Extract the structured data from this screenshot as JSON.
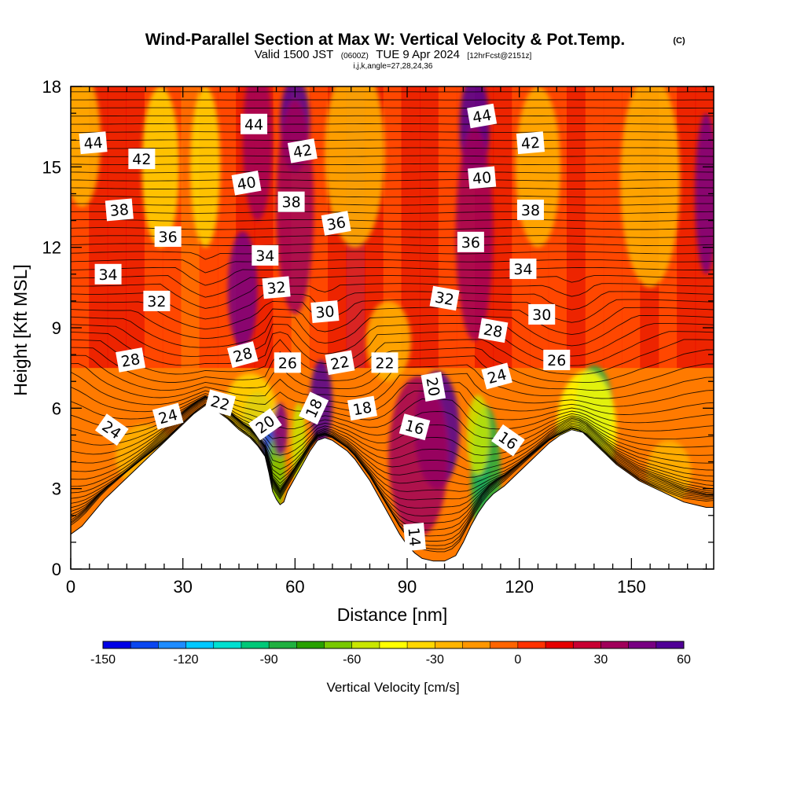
{
  "chart_data": {
    "type": "heatmap",
    "title": "Wind-Parallel Section at Max W: Vertical Velocity & Pot.Temp.",
    "title_mark": "(C)",
    "subtitle_parts": [
      "Valid 1500 JST",
      "(0600Z)",
      "TUE 9 Apr 2024",
      "[12hrFcst@2151z]"
    ],
    "subtitle2": "i,j,k,angle=27,28,24,36",
    "xlabel": "Distance [nm]",
    "ylabel": "Height [Kft MSL]",
    "xlim": [
      0,
      172
    ],
    "ylim": [
      0,
      18
    ],
    "x_ticks": [
      0,
      30,
      60,
      90,
      120,
      150
    ],
    "y_ticks": [
      0,
      3,
      6,
      9,
      12,
      15,
      18
    ],
    "colorbar": {
      "label": "Vertical Velocity [cm/s]",
      "range": [
        -150,
        60
      ],
      "tick_values": [
        -150,
        -120,
        -90,
        -60,
        -30,
        0,
        30,
        60
      ],
      "colors": [
        "#0000e6",
        "#0a46f0",
        "#1e8cff",
        "#00c8ff",
        "#00e0d0",
        "#00c878",
        "#20b040",
        "#28a000",
        "#78c800",
        "#c8e600",
        "#ffff00",
        "#ffd700",
        "#ffb400",
        "#ff9600",
        "#ff6400",
        "#ff3200",
        "#e60000",
        "#c80032",
        "#a0005a",
        "#780082",
        "#500096"
      ]
    },
    "terrain_kft": [
      [
        0,
        1.3
      ],
      [
        3,
        1.6
      ],
      [
        6,
        2.1
      ],
      [
        9,
        2.6
      ],
      [
        12,
        3.0
      ],
      [
        15,
        3.4
      ],
      [
        18,
        3.8
      ],
      [
        21,
        4.2
      ],
      [
        24,
        4.6
      ],
      [
        27,
        5.0
      ],
      [
        30,
        5.4
      ],
      [
        33,
        5.8
      ],
      [
        36,
        6.1
      ],
      [
        39,
        5.9
      ],
      [
        42,
        5.6
      ],
      [
        45,
        5.2
      ],
      [
        48,
        4.9
      ],
      [
        50,
        4.6
      ],
      [
        52,
        4.2
      ],
      [
        53,
        3.6
      ],
      [
        54,
        2.9
      ],
      [
        55,
        2.6
      ],
      [
        56,
        2.4
      ],
      [
        57,
        2.5
      ],
      [
        58,
        2.9
      ],
      [
        60,
        3.4
      ],
      [
        62,
        3.9
      ],
      [
        64,
        4.4
      ],
      [
        66,
        4.8
      ],
      [
        68,
        4.9
      ],
      [
        70,
        4.8
      ],
      [
        72,
        4.6
      ],
      [
        74,
        4.4
      ],
      [
        76,
        4.1
      ],
      [
        78,
        3.7
      ],
      [
        80,
        3.3
      ],
      [
        82,
        2.8
      ],
      [
        84,
        2.3
      ],
      [
        86,
        1.8
      ],
      [
        88,
        1.3
      ],
      [
        90,
        0.9
      ],
      [
        92,
        0.6
      ],
      [
        94,
        0.4
      ],
      [
        97,
        0.3
      ],
      [
        100,
        0.3
      ],
      [
        103,
        0.5
      ],
      [
        105,
        1.0
      ],
      [
        107,
        1.6
      ],
      [
        109,
        2.1
      ],
      [
        111,
        2.5
      ],
      [
        113,
        2.8
      ],
      [
        116,
        3.1
      ],
      [
        119,
        3.5
      ],
      [
        122,
        3.9
      ],
      [
        125,
        4.3
      ],
      [
        128,
        4.7
      ],
      [
        131,
        5.0
      ],
      [
        134,
        5.2
      ],
      [
        137,
        5.1
      ],
      [
        140,
        4.7
      ],
      [
        143,
        4.3
      ],
      [
        146,
        3.9
      ],
      [
        149,
        3.6
      ],
      [
        152,
        3.3
      ],
      [
        155,
        3.1
      ],
      [
        158,
        2.9
      ],
      [
        161,
        2.7
      ],
      [
        164,
        2.5
      ],
      [
        167,
        2.4
      ],
      [
        170,
        2.3
      ],
      [
        172,
        2.3
      ]
    ],
    "w_features": [
      {
        "x": 140,
        "y": 6.0,
        "w": -90,
        "rx": 5,
        "ry": 1.6
      },
      {
        "x": 138,
        "y": 5.2,
        "w": -50,
        "rx": 8,
        "ry": 2.2
      },
      {
        "x": 110,
        "y": 4.0,
        "w": -130,
        "rx": 2,
        "ry": 1.6
      },
      {
        "x": 111,
        "y": 3.5,
        "w": -90,
        "rx": 4,
        "ry": 2.6
      },
      {
        "x": 109,
        "y": 5.0,
        "w": -60,
        "rx": 3,
        "ry": 1.5
      },
      {
        "x": 50,
        "y": 5.6,
        "w": -90,
        "rx": 4,
        "ry": 1.0
      },
      {
        "x": 48,
        "y": 5.9,
        "w": -40,
        "rx": 7,
        "ry": 1.4
      },
      {
        "x": 53,
        "y": 4.6,
        "w": -140,
        "rx": 2,
        "ry": 0.7
      },
      {
        "x": 55,
        "y": 3.6,
        "w": -70,
        "rx": 2.5,
        "ry": 1.4
      },
      {
        "x": 61,
        "y": 4.6,
        "w": -60,
        "rx": 2,
        "ry": 1.6
      },
      {
        "x": 98,
        "y": 5.2,
        "w": 55,
        "rx": 6,
        "ry": 2.2
      },
      {
        "x": 93,
        "y": 4.2,
        "w": 35,
        "rx": 8,
        "ry": 3.0
      },
      {
        "x": 67,
        "y": 6.2,
        "w": 50,
        "rx": 3,
        "ry": 1.6
      },
      {
        "x": 56,
        "y": 5.2,
        "w": 40,
        "rx": 2,
        "ry": 1.0
      },
      {
        "x": 46,
        "y": 10.4,
        "w": 40,
        "rx": 4,
        "ry": 2.2
      },
      {
        "x": 60,
        "y": 16.6,
        "w": 55,
        "rx": 4,
        "ry": 1.8
      },
      {
        "x": 60,
        "y": 13.5,
        "w": 35,
        "rx": 5,
        "ry": 4.0
      },
      {
        "x": 50,
        "y": 16,
        "w": 30,
        "rx": 4,
        "ry": 3.0
      },
      {
        "x": 108,
        "y": 16.5,
        "w": 55,
        "rx": 4,
        "ry": 2.0
      },
      {
        "x": 108,
        "y": 12.5,
        "w": 32,
        "rx": 5,
        "ry": 4.0
      },
      {
        "x": 170,
        "y": 14,
        "w": 40,
        "rx": 3,
        "ry": 3.0
      },
      {
        "x": 24,
        "y": 15,
        "w": -40,
        "rx": 5,
        "ry": 3.0
      },
      {
        "x": 36,
        "y": 15,
        "w": -35,
        "rx": 4,
        "ry": 3.0
      },
      {
        "x": 3,
        "y": 16,
        "w": -30,
        "rx": 5,
        "ry": 2.5
      },
      {
        "x": 76,
        "y": 15.5,
        "w": -30,
        "rx": 8,
        "ry": 3.5
      },
      {
        "x": 125,
        "y": 15,
        "w": -30,
        "rx": 6,
        "ry": 3.0
      },
      {
        "x": 155,
        "y": 14.5,
        "w": -25,
        "rx": 8,
        "ry": 4.0
      },
      {
        "x": 20,
        "y": 4.2,
        "w": -25,
        "rx": 8,
        "ry": 1.2
      },
      {
        "x": 85,
        "y": 8.5,
        "w": -22,
        "rx": 6,
        "ry": 1.5
      },
      {
        "x": 160,
        "y": 3.6,
        "w": -25,
        "rx": 6,
        "ry": 1.2
      }
    ],
    "contour_labels": [
      {
        "text": "44",
        "x": 6,
        "y": 15.9,
        "angle": -5
      },
      {
        "text": "42",
        "x": 19,
        "y": 15.3,
        "angle": 0
      },
      {
        "text": "44",
        "x": 49,
        "y": 16.6,
        "angle": 0
      },
      {
        "text": "42",
        "x": 62,
        "y": 15.6,
        "angle": -10
      },
      {
        "text": "40",
        "x": 47,
        "y": 14.4,
        "angle": -10
      },
      {
        "text": "38",
        "x": 13,
        "y": 13.4,
        "angle": -5
      },
      {
        "text": "36",
        "x": 26,
        "y": 12.4,
        "angle": 0
      },
      {
        "text": "38",
        "x": 59,
        "y": 13.7,
        "angle": 0
      },
      {
        "text": "36",
        "x": 71,
        "y": 12.9,
        "angle": -10
      },
      {
        "text": "34",
        "x": 10,
        "y": 11.0,
        "angle": 0
      },
      {
        "text": "32",
        "x": 23,
        "y": 10.0,
        "angle": 0
      },
      {
        "text": "34",
        "x": 52,
        "y": 11.7,
        "angle": 0
      },
      {
        "text": "32",
        "x": 55,
        "y": 10.5,
        "angle": -5
      },
      {
        "text": "30",
        "x": 68,
        "y": 9.6,
        "angle": -5
      },
      {
        "text": "28",
        "x": 16,
        "y": 7.8,
        "angle": -10
      },
      {
        "text": "28",
        "x": 46,
        "y": 8.0,
        "angle": -15
      },
      {
        "text": "26",
        "x": 58,
        "y": 7.7,
        "angle": 0
      },
      {
        "text": "22",
        "x": 72,
        "y": 7.7,
        "angle": -10
      },
      {
        "text": "22",
        "x": 84,
        "y": 7.7,
        "angle": 0
      },
      {
        "text": "24",
        "x": 11,
        "y": 5.2,
        "angle": 35
      },
      {
        "text": "24",
        "x": 26,
        "y": 5.7,
        "angle": -15
      },
      {
        "text": "22",
        "x": 40,
        "y": 6.2,
        "angle": 15
      },
      {
        "text": "20",
        "x": 52,
        "y": 5.4,
        "angle": -35
      },
      {
        "text": "18",
        "x": 65,
        "y": 6.0,
        "angle": -65
      },
      {
        "text": "18",
        "x": 78,
        "y": 6.0,
        "angle": -10
      },
      {
        "text": "20",
        "x": 97,
        "y": 6.8,
        "angle": 80
      },
      {
        "text": "16",
        "x": 92,
        "y": 5.3,
        "angle": 15
      },
      {
        "text": "14",
        "x": 92,
        "y": 1.2,
        "angle": 85
      },
      {
        "text": "36",
        "x": 107,
        "y": 12.2,
        "angle": 0
      },
      {
        "text": "32",
        "x": 100,
        "y": 10.1,
        "angle": 10
      },
      {
        "text": "28",
        "x": 113,
        "y": 8.9,
        "angle": 10
      },
      {
        "text": "24",
        "x": 114,
        "y": 7.2,
        "angle": -15
      },
      {
        "text": "16",
        "x": 117,
        "y": 4.8,
        "angle": 35
      },
      {
        "text": "40",
        "x": 110,
        "y": 14.6,
        "angle": -5
      },
      {
        "text": "44",
        "x": 110,
        "y": 16.9,
        "angle": -10
      },
      {
        "text": "42",
        "x": 123,
        "y": 15.9,
        "angle": -5
      },
      {
        "text": "38",
        "x": 123,
        "y": 13.4,
        "angle": 0
      },
      {
        "text": "34",
        "x": 121,
        "y": 11.2,
        "angle": 0
      },
      {
        "text": "30",
        "x": 126,
        "y": 9.5,
        "angle": 0
      },
      {
        "text": "26",
        "x": 130,
        "y": 7.8,
        "angle": 0
      }
    ]
  }
}
